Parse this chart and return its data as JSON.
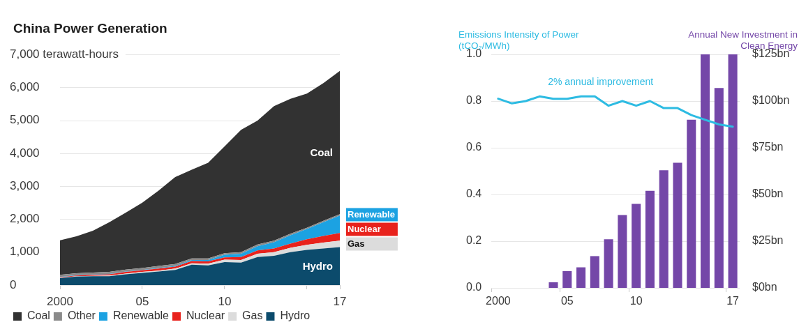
{
  "chart_data": [
    {
      "type": "area",
      "title": "China Power Generation",
      "stacked": true,
      "x": [
        2000,
        2001,
        2002,
        2003,
        2004,
        2005,
        2006,
        2007,
        2008,
        2009,
        2010,
        2011,
        2012,
        2013,
        2014,
        2015,
        2016,
        2017
      ],
      "xlim": [
        2000,
        2017
      ],
      "xticks": [
        {
          "value": 2000,
          "label": "2000"
        },
        {
          "value": 2005,
          "label": "05"
        },
        {
          "value": 2010,
          "label": "10"
        },
        {
          "value": 2015,
          "label": null
        },
        {
          "value": 2017,
          "label": "17"
        }
      ],
      "ylim": [
        0,
        7000
      ],
      "yticks": [
        0,
        {
          "value": 1000,
          "label": "1,000"
        },
        {
          "value": 2000,
          "label": "2,000"
        },
        {
          "value": 3000,
          "label": "3,000"
        },
        {
          "value": 4000,
          "label": "4,000"
        },
        {
          "value": 5000,
          "label": "5,000"
        },
        {
          "value": 6000,
          "label": "6,000"
        },
        {
          "value": 7000,
          "label": "7,000 terawatt-hours"
        }
      ],
      "grid": "y",
      "legend": "bottom left",
      "series": [
        {
          "name": "Hydro",
          "color": "#0c4b6c",
          "values": [
            210,
            260,
            270,
            270,
            330,
            370,
            410,
            460,
            620,
            600,
            700,
            680,
            850,
            890,
            1000,
            1070,
            1110,
            1150
          ]
        },
        {
          "name": "Gas",
          "color": "#dcdcdc",
          "values": [
            10,
            10,
            10,
            20,
            20,
            30,
            30,
            40,
            40,
            50,
            70,
            80,
            100,
            110,
            130,
            150,
            180,
            200
          ]
        },
        {
          "name": "Nuclear",
          "color": "#e8221c",
          "values": [
            20,
            20,
            30,
            40,
            50,
            50,
            60,
            60,
            70,
            70,
            70,
            90,
            100,
            110,
            130,
            170,
            200,
            230
          ]
        },
        {
          "name": "Renewable",
          "color": "#1ca2e2",
          "values": [
            10,
            10,
            10,
            10,
            10,
            10,
            20,
            20,
            30,
            40,
            80,
            100,
            130,
            190,
            250,
            310,
            420,
            530
          ]
        },
        {
          "name": "Other",
          "color": "#8a8a8a",
          "values": [
            60,
            60,
            60,
            60,
            60,
            60,
            60,
            60,
            50,
            50,
            50,
            50,
            50,
            50,
            50,
            40,
            40,
            40
          ]
        },
        {
          "name": "Coal",
          "color": "#323232",
          "values": [
            1050,
            1120,
            1270,
            1510,
            1730,
            1980,
            2290,
            2640,
            2690,
            2900,
            3240,
            3710,
            3760,
            4080,
            4090,
            4070,
            4180,
            4350
          ]
        }
      ]
    },
    {
      "type": "bar",
      "categories": [
        "2000",
        null,
        null,
        null,
        null,
        "05",
        null,
        null,
        null,
        null,
        "10",
        null,
        null,
        null,
        null,
        null,
        null,
        "17"
      ],
      "ylabel": "Emissions Intensity of Power (tCO₂/MWh)",
      "y2label": "Annual New Investment in Clean Energy",
      "ylim": [
        0,
        1
      ],
      "yticks": [
        {
          "value": 0,
          "label": "0.0"
        },
        0.2,
        0.4,
        0.6,
        0.8,
        {
          "value": 1,
          "label": "1.0"
        }
      ],
      "y2lim": [
        0,
        125
      ],
      "y2ticks": [
        {
          "value": 0,
          "label": "$0bn"
        },
        {
          "value": 25,
          "label": "$25bn"
        },
        {
          "value": 50,
          "label": "$50bn"
        },
        {
          "value": 75,
          "label": "$75bn"
        },
        {
          "value": 100,
          "label": "$100bn"
        },
        {
          "value": 125,
          "label": "$125bn"
        }
      ],
      "grid": "y",
      "annotations": [
        "2% annual improvement"
      ],
      "series": [
        {
          "type": "bar",
          "axis": "y2",
          "color": "#7447a8",
          "values": [
            null,
            null,
            null,
            null,
            3,
            9,
            11,
            17,
            26,
            39,
            45,
            52,
            63,
            67,
            90,
            125,
            107,
            125
          ]
        },
        {
          "type": "line",
          "color": "#2dbbe2",
          "values": [
            0.81,
            0.79,
            0.8,
            0.82,
            0.81,
            0.81,
            0.82,
            0.82,
            0.78,
            0.8,
            0.78,
            0.8,
            0.77,
            0.77,
            0.74,
            0.72,
            0.7,
            0.69
          ]
        }
      ]
    }
  ]
}
